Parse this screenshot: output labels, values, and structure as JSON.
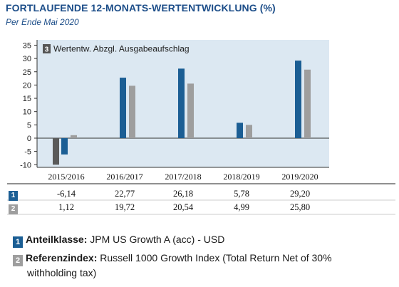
{
  "header": {
    "title": "FORTLAUFENDE 12-MONATS-WERTENTWICKLUNG (%)",
    "subtitle": "Per Ende Mai 2020"
  },
  "chart_data": {
    "type": "bar",
    "annotation_badge": "3",
    "annotation": "Wertentw. Abzgl. Ausgabeaufschlag",
    "categories": [
      "2015/2016",
      "2016/2017",
      "2017/2018",
      "2018/2019",
      "2019/2020"
    ],
    "series": [
      {
        "badge": "1",
        "values": [
          -6.14,
          22.77,
          26.18,
          5.78,
          29.2
        ],
        "labels": [
          "-6,14",
          "22,77",
          "26,18",
          "5,78",
          "29,20"
        ],
        "color": "#1b5e94"
      },
      {
        "badge": "2",
        "values": [
          1.12,
          19.72,
          20.54,
          4.99,
          25.8
        ],
        "labels": [
          "1,12",
          "19,72",
          "20,54",
          "4,99",
          "25,80"
        ],
        "color": "#9e9e9e"
      }
    ],
    "highlight": {
      "category_index": 0,
      "value": -10,
      "color": "#5a5a5a"
    },
    "yticks": [
      "35",
      "30",
      "25",
      "20",
      "15",
      "10",
      "5",
      "0",
      "-5",
      "-10"
    ],
    "ylim": [
      -11,
      37
    ],
    "plot_background": "#dce8f2"
  },
  "legend": {
    "items": [
      {
        "badge": "1",
        "label": "Anteilklasse:",
        "text": "JPM US Growth A (acc) - USD",
        "continuation": ""
      },
      {
        "badge": "2",
        "label": "Referenzindex:",
        "text": "Russell 1000 Growth Index (Total Return Net of 30%",
        "continuation": "withholding tax)"
      }
    ]
  }
}
